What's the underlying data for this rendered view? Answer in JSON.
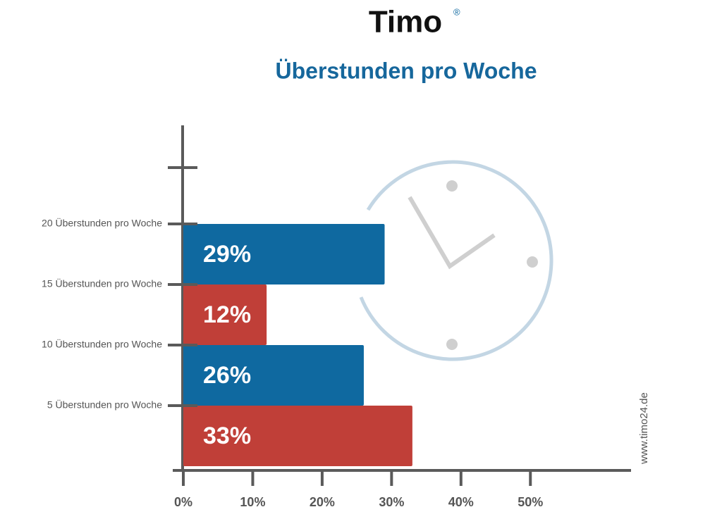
{
  "chart_data": {
    "type": "hbar",
    "logo": "Timo",
    "logo_mark": "®",
    "title": "Überstunden pro Woche",
    "source": "www.timo24.de",
    "categories": [
      "20 Überstunden pro Woche",
      "15 Überstunden pro Woche",
      "10 Überstunden pro Woche",
      "5 Überstunden pro Woche"
    ],
    "values": [
      29,
      12,
      26,
      33
    ],
    "value_labels": [
      "29%",
      "12%",
      "26%",
      "33%"
    ],
    "colors": [
      "#0f69a0",
      "#c03f38",
      "#0f69a0",
      "#c03f38"
    ],
    "xlim": [
      0,
      64.5
    ],
    "xticks": [
      {
        "value": 0,
        "label": "0%"
      },
      {
        "value": 10,
        "label": "10%"
      },
      {
        "value": 20,
        "label": "20%"
      },
      {
        "value": 30,
        "label": "30%"
      },
      {
        "value": 40,
        "label": "40%"
      },
      {
        "value": 50,
        "label": "50%"
      }
    ]
  }
}
